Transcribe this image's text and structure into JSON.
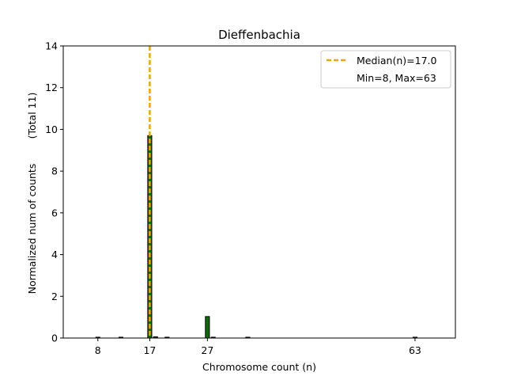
{
  "chart_data": {
    "type": "bar",
    "title": "Dieffenbachia",
    "xlabel": "Chromosome count (n)",
    "ylabel": "Normalized num of counts",
    "ylabel_extra": "(Total 11)",
    "xlim": [
      2,
      70
    ],
    "ylim": [
      0,
      14
    ],
    "yticks": [
      0,
      2,
      4,
      6,
      8,
      10,
      12,
      14
    ],
    "xticks": [
      8,
      17,
      27,
      63
    ],
    "bar_width": 0.7,
    "bar_color": "#0b6e0b",
    "bar_edge_color": "#000000",
    "bars": [
      {
        "x": 8,
        "value": 0.04
      },
      {
        "x": 12,
        "value": 0.04
      },
      {
        "x": 17,
        "value": 9.7
      },
      {
        "x": 18,
        "value": 0.06
      },
      {
        "x": 20,
        "value": 0.04
      },
      {
        "x": 27,
        "value": 1.03
      },
      {
        "x": 28,
        "value": 0.04
      },
      {
        "x": 34,
        "value": 0.04
      },
      {
        "x": 63,
        "value": 0.04
      }
    ],
    "median": {
      "x": 17.0,
      "color": "#f0a30a",
      "label": "Median(n)=17.0"
    },
    "legend": {
      "placement": "top-right",
      "entries": [
        "Median(n)=17.0",
        "Min=8, Max=63"
      ]
    }
  }
}
